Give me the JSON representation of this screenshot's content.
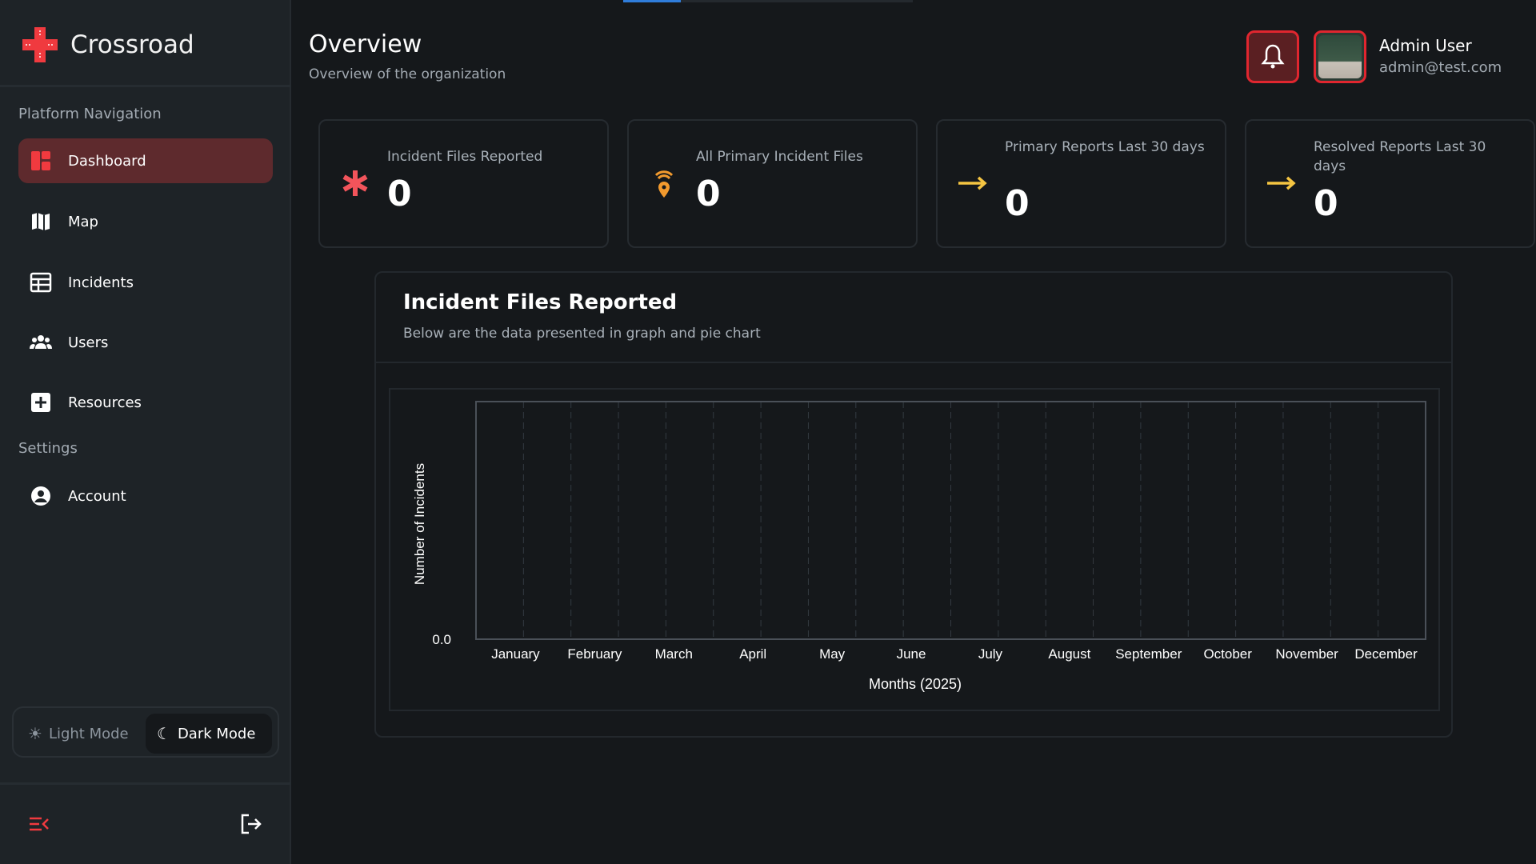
{
  "app": {
    "name": "Crossroad"
  },
  "sidebar": {
    "section_nav": "Platform Navigation",
    "items": [
      {
        "label": "Dashboard",
        "icon": "dashboard-icon"
      },
      {
        "label": "Map",
        "icon": "map-icon"
      },
      {
        "label": "Incidents",
        "icon": "table-icon"
      },
      {
        "label": "Users",
        "icon": "users-icon"
      },
      {
        "label": "Resources",
        "icon": "plus-square-icon"
      }
    ],
    "section_settings": "Settings",
    "settings_items": [
      {
        "label": "Account",
        "icon": "user-circle-icon"
      }
    ],
    "theme": {
      "light": "Light Mode",
      "dark": "Dark Mode",
      "selected": "Dark Mode"
    }
  },
  "header": {
    "title": "Overview",
    "subtitle": "Overview of the organization",
    "user_name": "Admin User",
    "user_email": "admin@test.com"
  },
  "stats": [
    {
      "label": "Incident Files Reported",
      "value": "0",
      "icon": "asterisk-icon"
    },
    {
      "label": "All Primary Incident Files",
      "value": "0",
      "icon": "location-signal-icon"
    },
    {
      "label": "Primary Reports Last 30 days",
      "value": "0",
      "icon": "arrow-right-icon"
    },
    {
      "label": "Resolved Reports Last 30 days",
      "value": "0",
      "icon": "arrow-right-icon"
    }
  ],
  "colors": {
    "accent": "#e0262f",
    "active_bg": "#5e2a2d",
    "yellow": "#f5c542",
    "orange": "#f29a2e"
  },
  "chart_card": {
    "title": "Incident Files Reported",
    "subtitle": "Below are the data presented in graph and pie chart"
  },
  "chart_data": {
    "type": "line",
    "categories": [
      "January",
      "February",
      "March",
      "April",
      "May",
      "June",
      "July",
      "August",
      "September",
      "October",
      "November",
      "December"
    ],
    "values": [
      0,
      0,
      0,
      0,
      0,
      0,
      0,
      0,
      0,
      0,
      0,
      0
    ],
    "xlabel": "Months (2025)",
    "ylabel": "Number of Incidents",
    "y_ticks": [
      "0.0"
    ],
    "grid": "vertical dashed"
  }
}
